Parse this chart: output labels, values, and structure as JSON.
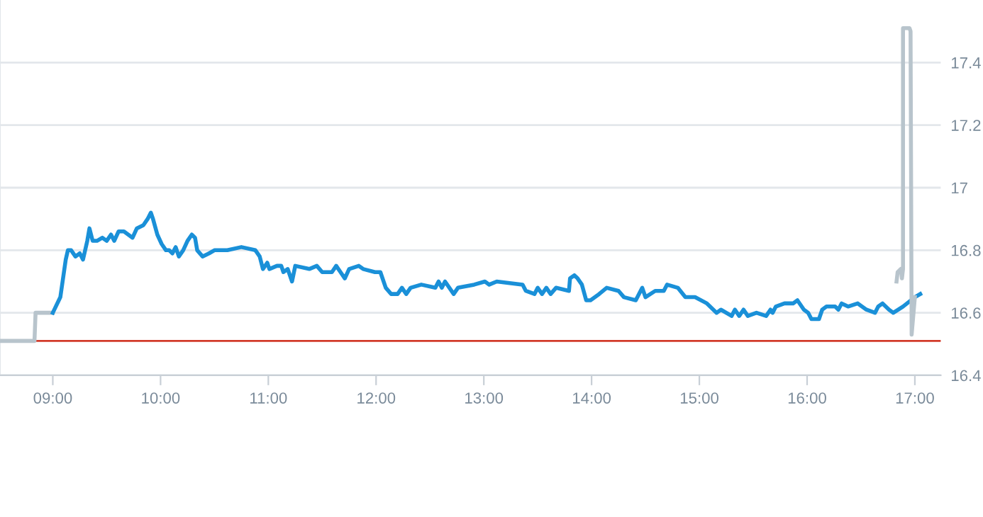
{
  "chart_data": {
    "type": "line",
    "xlim": [
      8.51,
      17.24
    ],
    "ylim": [
      16.4,
      17.6
    ],
    "xticks": [
      {
        "value": 9,
        "label": "09:00"
      },
      {
        "value": 10,
        "label": "10:00"
      },
      {
        "value": 11,
        "label": "11:00"
      },
      {
        "value": 12,
        "label": "12:00"
      },
      {
        "value": 13,
        "label": "13:00"
      },
      {
        "value": 14,
        "label": "14:00"
      },
      {
        "value": 15,
        "label": "15:00"
      },
      {
        "value": 16,
        "label": "16:00"
      },
      {
        "value": 17,
        "label": "17:00"
      }
    ],
    "yticks": [
      16.4,
      16.6,
      16.8,
      17,
      17.2,
      17.4
    ],
    "grid": "y",
    "legend": false,
    "marker": "none",
    "line_style": "solid",
    "ref_lines": [
      {
        "axis": "y",
        "value": 16.51,
        "color": "#d23a2a"
      }
    ],
    "series": [
      {
        "color": "#b8c4cc",
        "x": [
          8.51,
          8.83,
          8.84,
          9.0
        ],
        "values": [
          16.51,
          16.51,
          16.6,
          16.6
        ]
      },
      {
        "color": "#1a90d8",
        "x": [
          9.0,
          9.07,
          9.12,
          9.14,
          9.17,
          9.21,
          9.25,
          9.28,
          9.32,
          9.34,
          9.37,
          9.41,
          9.46,
          9.5,
          9.54,
          9.57,
          9.61,
          9.66,
          9.7,
          9.74,
          9.78,
          9.84,
          9.88,
          9.91,
          9.93,
          9.97,
          10.01,
          10.05,
          10.08,
          10.11,
          10.14,
          10.17,
          10.21,
          10.25,
          10.29,
          10.32,
          10.34,
          10.39,
          10.45,
          10.5,
          10.62,
          10.75,
          10.88,
          10.92,
          10.95,
          10.99,
          11.01,
          11.08,
          11.12,
          11.14,
          11.18,
          11.22,
          11.25,
          11.38,
          11.45,
          11.5,
          11.59,
          11.63,
          11.67,
          11.71,
          11.75,
          11.84,
          11.88,
          11.99,
          12.04,
          12.09,
          12.14,
          12.2,
          12.24,
          12.28,
          12.32,
          12.42,
          12.55,
          12.58,
          12.61,
          12.64,
          12.72,
          12.76,
          12.91,
          13.01,
          13.05,
          13.12,
          13.36,
          13.39,
          13.47,
          13.5,
          13.54,
          13.58,
          13.62,
          13.67,
          13.79,
          13.8,
          13.84,
          13.87,
          13.91,
          13.95,
          13.99,
          14.07,
          14.14,
          14.25,
          14.3,
          14.41,
          14.47,
          14.5,
          14.59,
          14.67,
          14.7,
          14.8,
          14.87,
          14.96,
          15.07,
          15.16,
          15.2,
          15.3,
          15.33,
          15.37,
          15.41,
          15.45,
          15.53,
          15.62,
          15.66,
          15.68,
          15.71,
          15.79,
          15.87,
          15.91,
          15.97,
          16.01,
          16.04,
          16.11,
          16.14,
          16.18,
          16.26,
          16.29,
          16.32,
          16.38,
          16.47,
          16.55,
          16.63,
          16.66,
          16.7,
          16.76,
          16.8,
          16.89,
          17.0,
          17.05
        ],
        "values": [
          16.6,
          16.65,
          16.77,
          16.8,
          16.8,
          16.78,
          16.79,
          16.77,
          16.83,
          16.87,
          16.83,
          16.83,
          16.84,
          16.83,
          16.85,
          16.83,
          16.86,
          16.86,
          16.85,
          16.84,
          16.87,
          16.88,
          16.9,
          16.92,
          16.9,
          16.85,
          16.82,
          16.8,
          16.8,
          16.79,
          16.81,
          16.78,
          16.8,
          16.83,
          16.85,
          16.84,
          16.8,
          16.78,
          16.79,
          16.8,
          16.8,
          16.81,
          16.8,
          16.78,
          16.74,
          16.76,
          16.74,
          16.75,
          16.75,
          16.73,
          16.74,
          16.7,
          16.75,
          16.74,
          16.75,
          16.73,
          16.73,
          16.75,
          16.73,
          16.71,
          16.74,
          16.75,
          16.74,
          16.73,
          16.73,
          16.68,
          16.66,
          16.66,
          16.68,
          16.66,
          16.68,
          16.69,
          16.68,
          16.7,
          16.68,
          16.7,
          16.66,
          16.68,
          16.69,
          16.7,
          16.69,
          16.7,
          16.69,
          16.67,
          16.66,
          16.68,
          16.66,
          16.68,
          16.66,
          16.68,
          16.67,
          16.71,
          16.72,
          16.71,
          16.69,
          16.64,
          16.64,
          16.66,
          16.68,
          16.67,
          16.65,
          16.64,
          16.68,
          16.65,
          16.67,
          16.67,
          16.69,
          16.68,
          16.65,
          16.65,
          16.63,
          16.6,
          16.61,
          16.59,
          16.61,
          16.59,
          16.61,
          16.59,
          16.6,
          16.59,
          16.61,
          16.6,
          16.62,
          16.63,
          16.63,
          16.64,
          16.61,
          16.6,
          16.58,
          16.58,
          16.61,
          16.62,
          16.62,
          16.61,
          16.63,
          16.62,
          16.63,
          16.61,
          16.6,
          16.62,
          16.63,
          16.61,
          16.6,
          16.62,
          16.65,
          16.66
        ]
      },
      {
        "color": "#b8c4cc",
        "x": [
          16.83,
          16.84,
          16.87,
          16.88,
          16.89,
          16.89,
          16.95,
          16.96,
          16.97,
          17.0
        ],
        "values": [
          16.7,
          16.73,
          16.74,
          16.71,
          16.74,
          17.51,
          17.51,
          17.5,
          16.53,
          16.65
        ]
      }
    ]
  }
}
